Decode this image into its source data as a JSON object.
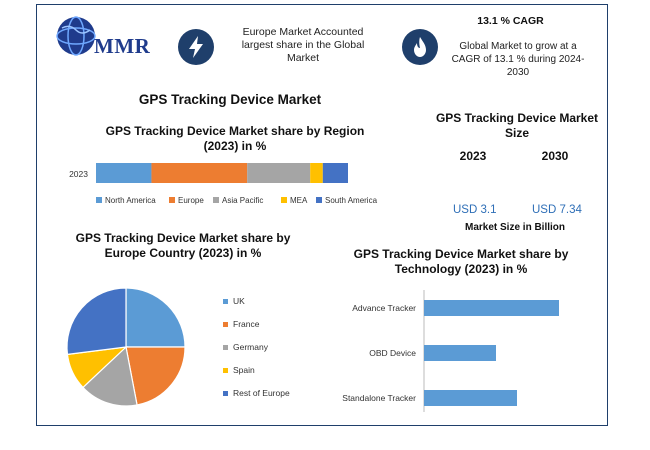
{
  "header": {
    "logo_text": "MMR",
    "fact1": "Europe Market Accounted largest share in the Global Market",
    "cagr_title": "13.1 % CAGR",
    "cagr_text": "Global Market to grow at a CAGR of 13.1 % during 2024-2030",
    "icons": {
      "fact1": "lightning-icon",
      "cagr": "flame-icon",
      "logo": "globe-icon"
    }
  },
  "main_title": "GPS Tracking Device Market",
  "market_size": {
    "title": "GPS Tracking Device Market Size",
    "years": [
      "2023",
      "2030"
    ],
    "values": [
      "USD 3.1",
      "USD 7.34"
    ],
    "caption": "Market Size in Billion"
  },
  "colors": {
    "frame": "#1f3f6b",
    "blue": "#5b9bd5",
    "orange": "#ed7d31",
    "gray": "#a5a5a5",
    "yellow": "#ffc000",
    "darkblue": "#4472c4"
  },
  "chart_data": [
    {
      "type": "bar",
      "orientation": "horizontal-stacked",
      "title": "GPS Tracking Device Market share by Region (2023) in %",
      "categories": [
        "2023"
      ],
      "series": [
        {
          "name": "North America",
          "values": [
            22
          ],
          "color": "#5b9bd5"
        },
        {
          "name": "Europe",
          "values": [
            38
          ],
          "color": "#ed7d31"
        },
        {
          "name": "Asia Pacific",
          "values": [
            25
          ],
          "color": "#a5a5a5"
        },
        {
          "name": "MEA",
          "values": [
            5
          ],
          "color": "#ffc000"
        },
        {
          "name": "South America",
          "values": [
            10
          ],
          "color": "#4472c4"
        }
      ],
      "legend": "bottom"
    },
    {
      "type": "pie",
      "title": "GPS Tracking Device Market share by Europe Country (2023) in %",
      "labels": [
        "UK",
        "France",
        "Germany",
        "Spain",
        "Rest of Europe"
      ],
      "values": [
        25,
        22,
        16,
        10,
        27
      ],
      "colors": [
        "#5b9bd5",
        "#ed7d31",
        "#a5a5a5",
        "#ffc000",
        "#4472c4"
      ],
      "legend": "right"
    },
    {
      "type": "bar",
      "orientation": "horizontal",
      "title": "GPS Tracking Device Market share by Technology (2023) in %",
      "categories": [
        "Advance Tracker",
        "OBD Device",
        "Standalone Tracker"
      ],
      "values": [
        45,
        24,
        31
      ],
      "color": "#5b9bd5"
    }
  ]
}
